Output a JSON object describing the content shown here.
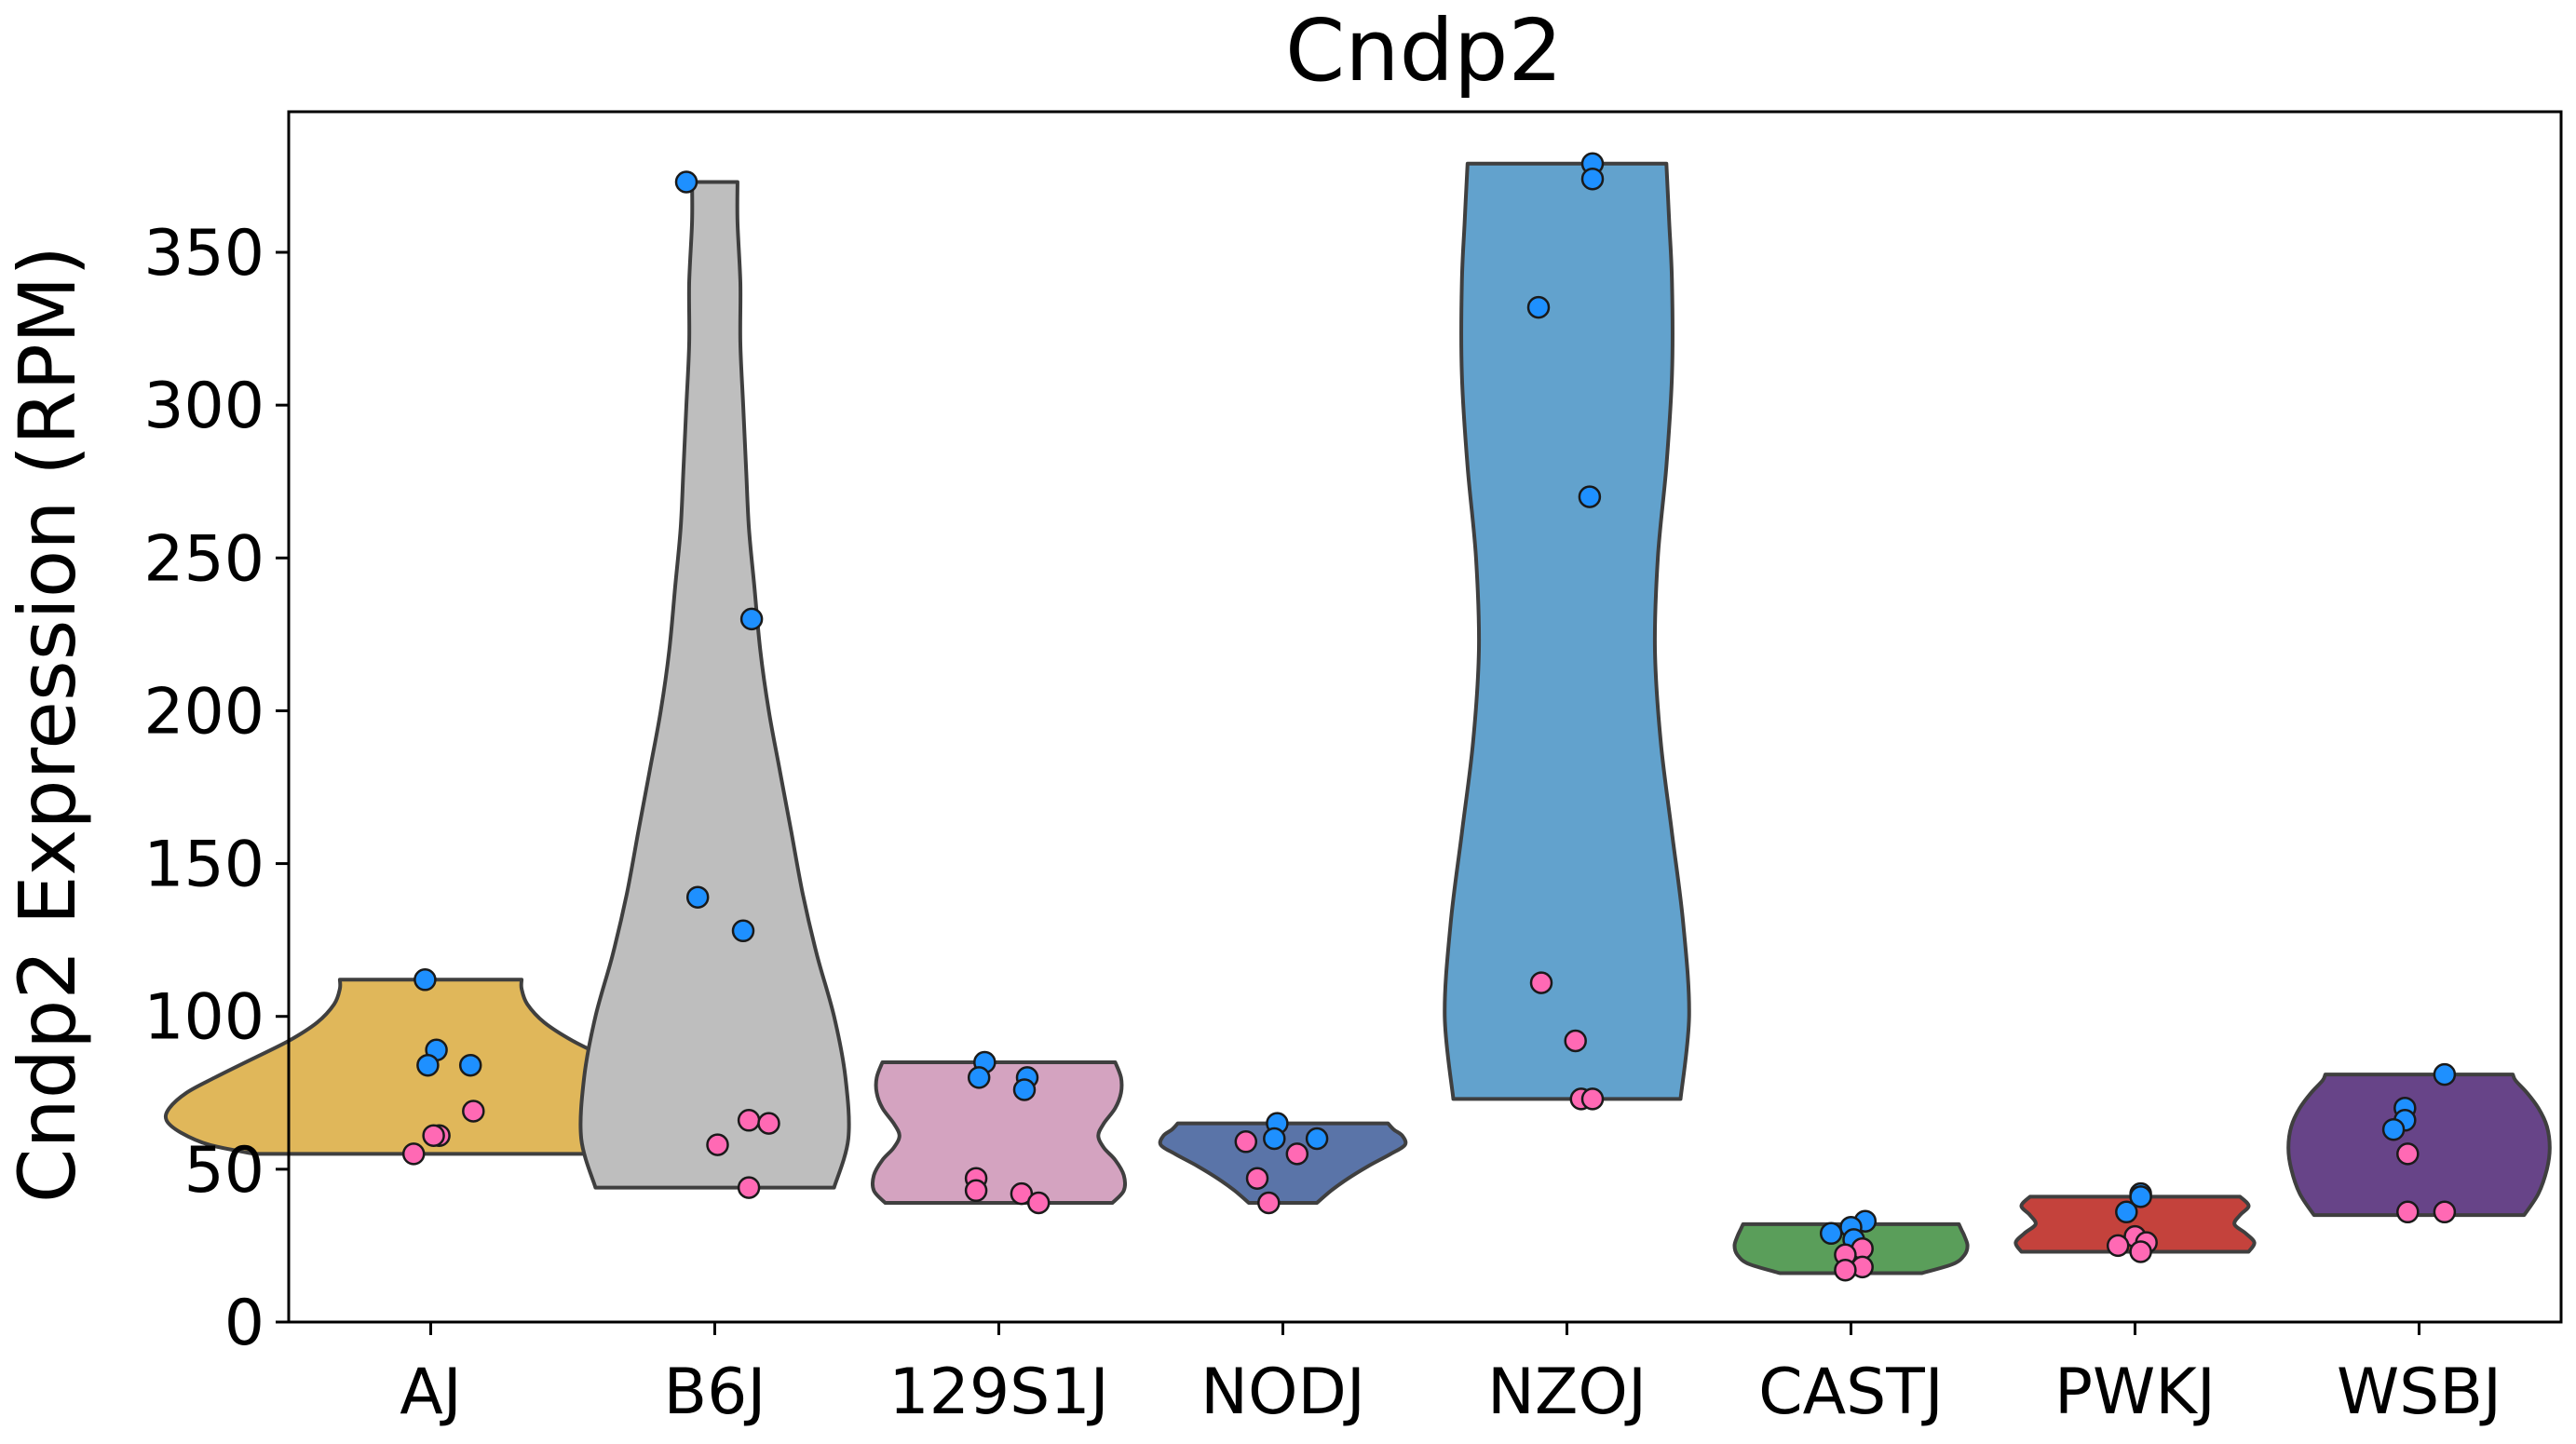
{
  "chart_data": {
    "type": "violin",
    "title": "Cndp2",
    "xlabel": "",
    "ylabel": "Cndp2 Expression (RPM)",
    "ylim": [
      0,
      396
    ],
    "yticks": [
      0,
      50,
      100,
      150,
      200,
      250,
      300,
      350
    ],
    "grid": false,
    "legend": "none",
    "point_colors": {
      "blue": "#1E90FF",
      "pink": "#FF69B4"
    },
    "groups": [
      {
        "name": "AJ",
        "color": "#E0B75A",
        "min": 55,
        "max": 112,
        "profile": [
          [
            55,
            0.62
          ],
          [
            58,
            0.78
          ],
          [
            62,
            0.88
          ],
          [
            66,
            0.93
          ],
          [
            70,
            0.92
          ],
          [
            75,
            0.86
          ],
          [
            80,
            0.76
          ],
          [
            86,
            0.63
          ],
          [
            92,
            0.5
          ],
          [
            98,
            0.4
          ],
          [
            104,
            0.34
          ],
          [
            109,
            0.32
          ],
          [
            112,
            0.32
          ]
        ],
        "points": [
          {
            "v": 112,
            "c": "blue",
            "j": -0.02
          },
          {
            "v": 89,
            "c": "blue",
            "j": 0.02
          },
          {
            "v": 84,
            "c": "blue",
            "j": -0.01
          },
          {
            "v": 84,
            "c": "blue",
            "j": 0.14
          },
          {
            "v": 69,
            "c": "pink",
            "j": 0.15
          },
          {
            "v": 61,
            "c": "pink",
            "j": 0.03
          },
          {
            "v": 61,
            "c": "pink",
            "j": 0.01
          },
          {
            "v": 55,
            "c": "pink",
            "j": -0.06
          }
        ]
      },
      {
        "name": "B6J",
        "color": "#BEBEBE",
        "min": 44,
        "max": 373,
        "profile": [
          [
            44,
            0.42
          ],
          [
            60,
            0.47
          ],
          [
            80,
            0.46
          ],
          [
            100,
            0.42
          ],
          [
            120,
            0.36
          ],
          [
            140,
            0.31
          ],
          [
            160,
            0.27
          ],
          [
            180,
            0.23
          ],
          [
            200,
            0.19
          ],
          [
            220,
            0.16
          ],
          [
            240,
            0.14
          ],
          [
            260,
            0.12
          ],
          [
            280,
            0.11
          ],
          [
            300,
            0.1
          ],
          [
            320,
            0.09
          ],
          [
            340,
            0.09
          ],
          [
            360,
            0.08
          ],
          [
            373,
            0.08
          ]
        ],
        "points": [
          {
            "v": 373,
            "c": "blue",
            "j": -0.1
          },
          {
            "v": 230,
            "c": "blue",
            "j": 0.13
          },
          {
            "v": 139,
            "c": "blue",
            "j": -0.06
          },
          {
            "v": 128,
            "c": "blue",
            "j": 0.1
          },
          {
            "v": 66,
            "c": "pink",
            "j": 0.12
          },
          {
            "v": 65,
            "c": "pink",
            "j": 0.19
          },
          {
            "v": 58,
            "c": "pink",
            "j": 0.01
          },
          {
            "v": 44,
            "c": "pink",
            "j": 0.12
          }
        ]
      },
      {
        "name": "129S1J",
        "color": "#D4A3C0",
        "min": 39,
        "max": 85,
        "profile": [
          [
            39,
            0.4
          ],
          [
            43,
            0.44
          ],
          [
            48,
            0.44
          ],
          [
            53,
            0.41
          ],
          [
            57,
            0.37
          ],
          [
            61,
            0.35
          ],
          [
            65,
            0.37
          ],
          [
            70,
            0.41
          ],
          [
            75,
            0.43
          ],
          [
            80,
            0.43
          ],
          [
            85,
            0.41
          ]
        ],
        "points": [
          {
            "v": 85,
            "c": "blue",
            "j": -0.05
          },
          {
            "v": 80,
            "c": "blue",
            "j": -0.07
          },
          {
            "v": 80,
            "c": "blue",
            "j": 0.1
          },
          {
            "v": 76,
            "c": "blue",
            "j": 0.09
          },
          {
            "v": 47,
            "c": "pink",
            "j": -0.08
          },
          {
            "v": 43,
            "c": "pink",
            "j": -0.08
          },
          {
            "v": 42,
            "c": "pink",
            "j": 0.08
          },
          {
            "v": 39,
            "c": "pink",
            "j": 0.14
          }
        ]
      },
      {
        "name": "NODJ",
        "color": "#5A74A8",
        "min": 39,
        "max": 65,
        "profile": [
          [
            39,
            0.12
          ],
          [
            43,
            0.17
          ],
          [
            47,
            0.23
          ],
          [
            51,
            0.3
          ],
          [
            55,
            0.38
          ],
          [
            58,
            0.43
          ],
          [
            61,
            0.42
          ],
          [
            63,
            0.39
          ],
          [
            65,
            0.37
          ]
        ],
        "points": [
          {
            "v": 65,
            "c": "blue",
            "j": -0.02
          },
          {
            "v": 60,
            "c": "blue",
            "j": -0.03
          },
          {
            "v": 60,
            "c": "blue",
            "j": 0.12
          },
          {
            "v": 59,
            "c": "pink",
            "j": -0.13
          },
          {
            "v": 55,
            "c": "pink",
            "j": 0.05
          },
          {
            "v": 47,
            "c": "pink",
            "j": -0.09
          },
          {
            "v": 39,
            "c": "pink",
            "j": -0.05
          }
        ]
      },
      {
        "name": "NZOJ",
        "color": "#62A2CD",
        "min": 73,
        "max": 379,
        "profile": [
          [
            73,
            0.4
          ],
          [
            100,
            0.43
          ],
          [
            130,
            0.41
          ],
          [
            160,
            0.37
          ],
          [
            190,
            0.33
          ],
          [
            220,
            0.31
          ],
          [
            250,
            0.32
          ],
          [
            280,
            0.35
          ],
          [
            310,
            0.37
          ],
          [
            340,
            0.37
          ],
          [
            360,
            0.36
          ],
          [
            379,
            0.35
          ]
        ],
        "points": [
          {
            "v": 379,
            "c": "blue",
            "j": 0.09
          },
          {
            "v": 374,
            "c": "blue",
            "j": 0.09
          },
          {
            "v": 332,
            "c": "blue",
            "j": -0.1
          },
          {
            "v": 270,
            "c": "blue",
            "j": 0.08
          },
          {
            "v": 111,
            "c": "pink",
            "j": -0.09
          },
          {
            "v": 92,
            "c": "pink",
            "j": 0.03
          },
          {
            "v": 73,
            "c": "pink",
            "j": 0.05
          },
          {
            "v": 73,
            "c": "pink",
            "j": 0.09
          }
        ]
      },
      {
        "name": "CASTJ",
        "color": "#5A9E5A",
        "min": 16,
        "max": 32,
        "profile": [
          [
            16,
            0.25
          ],
          [
            19,
            0.36
          ],
          [
            22,
            0.4
          ],
          [
            25,
            0.41
          ],
          [
            28,
            0.4
          ],
          [
            30,
            0.39
          ],
          [
            32,
            0.38
          ]
        ],
        "points": [
          {
            "v": 33,
            "c": "blue",
            "j": 0.05
          },
          {
            "v": 31,
            "c": "blue",
            "j": 0.0
          },
          {
            "v": 29,
            "c": "blue",
            "j": -0.07
          },
          {
            "v": 27,
            "c": "blue",
            "j": 0.01
          },
          {
            "v": 24,
            "c": "pink",
            "j": 0.04
          },
          {
            "v": 22,
            "c": "pink",
            "j": -0.02
          },
          {
            "v": 18,
            "c": "pink",
            "j": 0.04
          },
          {
            "v": 17,
            "c": "pink",
            "j": -0.02
          }
        ]
      },
      {
        "name": "PWKJ",
        "color": "#C4423C",
        "min": 23,
        "max": 41,
        "profile": [
          [
            23,
            0.4
          ],
          [
            26,
            0.42
          ],
          [
            29,
            0.39
          ],
          [
            32,
            0.35
          ],
          [
            35,
            0.37
          ],
          [
            38,
            0.4
          ],
          [
            41,
            0.37
          ]
        ],
        "points": [
          {
            "v": 42,
            "c": "blue",
            "j": 0.02
          },
          {
            "v": 41,
            "c": "blue",
            "j": 0.02
          },
          {
            "v": 36,
            "c": "blue",
            "j": -0.03
          },
          {
            "v": 28,
            "c": "pink",
            "j": -0.0
          },
          {
            "v": 26,
            "c": "pink",
            "j": 0.04
          },
          {
            "v": 25,
            "c": "pink",
            "j": -0.06
          },
          {
            "v": 23,
            "c": "pink",
            "j": 0.02
          }
        ]
      },
      {
        "name": "WSBJ",
        "color": "#674488",
        "min": 35,
        "max": 81,
        "profile": [
          [
            35,
            0.37
          ],
          [
            42,
            0.42
          ],
          [
            50,
            0.45
          ],
          [
            57,
            0.46
          ],
          [
            64,
            0.45
          ],
          [
            70,
            0.42
          ],
          [
            75,
            0.38
          ],
          [
            79,
            0.34
          ],
          [
            81,
            0.33
          ]
        ],
        "points": [
          {
            "v": 81,
            "c": "blue",
            "j": 0.09
          },
          {
            "v": 70,
            "c": "blue",
            "j": -0.05
          },
          {
            "v": 66,
            "c": "blue",
            "j": -0.05
          },
          {
            "v": 63,
            "c": "blue",
            "j": -0.09
          },
          {
            "v": 55,
            "c": "pink",
            "j": -0.04
          },
          {
            "v": 36,
            "c": "pink",
            "j": -0.04
          },
          {
            "v": 36,
            "c": "pink",
            "j": 0.09
          }
        ]
      }
    ]
  }
}
